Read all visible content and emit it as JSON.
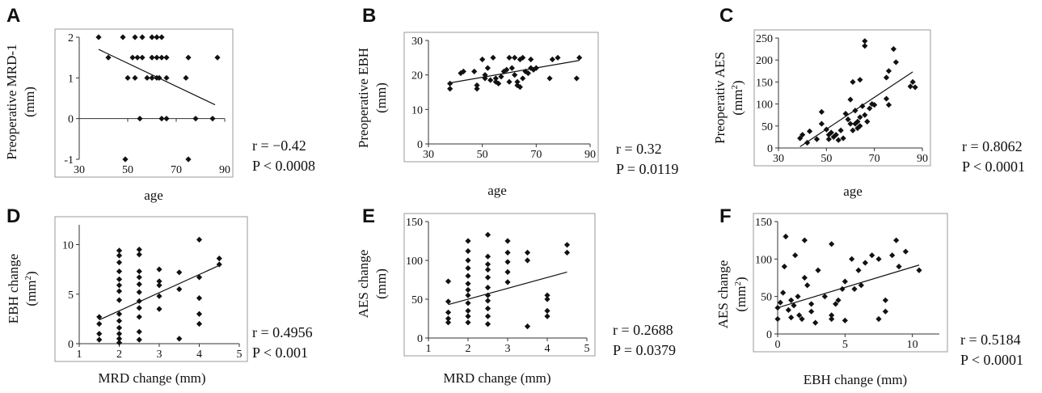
{
  "chart_data": [
    {
      "panel": "A",
      "type": "scatter",
      "xlabel": "age",
      "ylabel": "Preoperative MRD-1",
      "ylabel_unit": "(mm)",
      "xlim": [
        30,
        90
      ],
      "ylim": [
        -1,
        2
      ],
      "xticks": [
        "30",
        "50",
        "70",
        "90"
      ],
      "yticks": [
        "-1",
        "0",
        "1",
        "2"
      ],
      "x_axis_at": 0,
      "annotation": [
        "r = −0.42",
        "P < 0.0008"
      ],
      "trendline": [
        [
          38,
          1.7
        ],
        [
          86,
          0.34
        ]
      ],
      "points": [
        [
          38,
          2
        ],
        [
          48,
          2
        ],
        [
          53,
          2
        ],
        [
          56,
          2
        ],
        [
          60,
          2
        ],
        [
          62,
          2
        ],
        [
          64,
          2
        ],
        [
          42,
          1.5
        ],
        [
          52,
          1.5
        ],
        [
          54,
          1.5
        ],
        [
          56,
          1.5
        ],
        [
          60,
          1.5
        ],
        [
          62,
          1.5
        ],
        [
          64,
          1.5
        ],
        [
          66,
          1.5
        ],
        [
          75,
          1.5
        ],
        [
          87,
          1.5
        ],
        [
          50,
          1
        ],
        [
          53,
          1
        ],
        [
          58,
          1
        ],
        [
          60,
          1
        ],
        [
          62,
          1
        ],
        [
          63,
          1
        ],
        [
          66,
          1
        ],
        [
          74,
          1
        ],
        [
          55,
          0
        ],
        [
          64,
          0
        ],
        [
          66,
          0
        ],
        [
          78,
          0
        ],
        [
          85,
          0
        ],
        [
          49,
          -1
        ],
        [
          75,
          -1
        ]
      ]
    },
    {
      "panel": "B",
      "type": "scatter",
      "xlabel": "age",
      "ylabel": "Preoperative EBH",
      "ylabel_unit": "(mm)",
      "xlim": [
        30,
        90
      ],
      "ylim": [
        0,
        30
      ],
      "xticks": [
        "30",
        "50",
        "70",
        "90"
      ],
      "yticks": [
        "0",
        "10",
        "20",
        "30"
      ],
      "x_axis_at": 0,
      "annotation": [
        "r = 0.32",
        "P = 0.0119"
      ],
      "trendline": [
        [
          38,
          17.7
        ],
        [
          86,
          24.2
        ]
      ],
      "points": [
        [
          38,
          16
        ],
        [
          38,
          17.5
        ],
        [
          42,
          20.5
        ],
        [
          43,
          21
        ],
        [
          47,
          21
        ],
        [
          48,
          16
        ],
        [
          48,
          17
        ],
        [
          50,
          24.5
        ],
        [
          51,
          20
        ],
        [
          51,
          19
        ],
        [
          52,
          22
        ],
        [
          53,
          18.5
        ],
        [
          54,
          25
        ],
        [
          55,
          18
        ],
        [
          55,
          19
        ],
        [
          56,
          17.5
        ],
        [
          57,
          19.5
        ],
        [
          58,
          21
        ],
        [
          59,
          21.5
        ],
        [
          60,
          18
        ],
        [
          60,
          25
        ],
        [
          61,
          22
        ],
        [
          62,
          25
        ],
        [
          62,
          20
        ],
        [
          63,
          18
        ],
        [
          63,
          17
        ],
        [
          64,
          24.5
        ],
        [
          64,
          16.5
        ],
        [
          65,
          19
        ],
        [
          65,
          25
        ],
        [
          66,
          21
        ],
        [
          67,
          20.5
        ],
        [
          68,
          24.5
        ],
        [
          68,
          22
        ],
        [
          69,
          21.5
        ],
        [
          70,
          22
        ],
        [
          75,
          19
        ],
        [
          76,
          24.5
        ],
        [
          78,
          25
        ],
        [
          85,
          19
        ],
        [
          86,
          25
        ]
      ]
    },
    {
      "panel": "C",
      "type": "scatter",
      "xlabel": "age",
      "ylabel": "Preoperativ AES",
      "ylabel_unit": "(mm2)",
      "xlim": [
        30,
        90
      ],
      "ylim": [
        0,
        250
      ],
      "xticks": [
        "30",
        "50",
        "70",
        "90"
      ],
      "yticks": [
        "0",
        "50",
        "100",
        "150",
        "200",
        "250"
      ],
      "x_axis_at": 0,
      "annotation": [
        "r = 0.8062",
        "P < 0.0001"
      ],
      "trendline": [
        [
          39,
          3
        ],
        [
          86,
          173
        ]
      ],
      "points": [
        [
          39,
          22
        ],
        [
          40,
          30
        ],
        [
          42,
          12
        ],
        [
          43,
          38
        ],
        [
          46,
          20
        ],
        [
          48,
          55
        ],
        [
          48,
          82
        ],
        [
          50,
          42
        ],
        [
          51,
          20
        ],
        [
          51,
          30
        ],
        [
          52,
          35
        ],
        [
          53,
          25
        ],
        [
          54,
          30
        ],
        [
          55,
          18
        ],
        [
          56,
          40
        ],
        [
          57,
          22
        ],
        [
          58,
          78
        ],
        [
          59,
          65
        ],
        [
          60,
          55
        ],
        [
          60,
          110
        ],
        [
          61,
          40
        ],
        [
          61,
          150
        ],
        [
          62,
          85
        ],
        [
          62,
          55
        ],
        [
          63,
          45
        ],
        [
          63,
          60
        ],
        [
          64,
          155
        ],
        [
          64,
          70
        ],
        [
          64,
          50
        ],
        [
          65,
          95
        ],
        [
          66,
          75
        ],
        [
          66,
          243
        ],
        [
          66,
          232
        ],
        [
          67,
          60
        ],
        [
          68,
          90
        ],
        [
          69,
          100
        ],
        [
          70,
          98
        ],
        [
          75,
          112
        ],
        [
          75,
          160
        ],
        [
          76,
          175
        ],
        [
          76,
          98
        ],
        [
          78,
          225
        ],
        [
          79,
          195
        ],
        [
          85,
          140
        ],
        [
          86,
          150
        ],
        [
          87,
          138
        ]
      ]
    },
    {
      "panel": "D",
      "type": "scatter",
      "xlabel": "MRD change (mm)",
      "ylabel": "EBH change",
      "ylabel_unit": "(mm2)",
      "xlim": [
        1,
        5
      ],
      "ylim": [
        0,
        12
      ],
      "xticks": [
        "1",
        "2",
        "3",
        "4",
        "5"
      ],
      "yticks": [
        "0",
        "5",
        "10"
      ],
      "x_axis_at": 0,
      "annotation": [
        "r = 0.4956",
        "P < 0.001"
      ],
      "trendline": [
        [
          1.5,
          2.4
        ],
        [
          4.5,
          7.9
        ]
      ],
      "points": [
        [
          1.5,
          0.4
        ],
        [
          1.5,
          1
        ],
        [
          1.5,
          2
        ],
        [
          1.5,
          2.7
        ],
        [
          2,
          0.1
        ],
        [
          2,
          0.5
        ],
        [
          2,
          1
        ],
        [
          2,
          1.6
        ],
        [
          2,
          2.3
        ],
        [
          2,
          3
        ],
        [
          2,
          4.4
        ],
        [
          2,
          5.3
        ],
        [
          2,
          5.9
        ],
        [
          2,
          6.5
        ],
        [
          2,
          7.3
        ],
        [
          2,
          8.2
        ],
        [
          2,
          8.9
        ],
        [
          2,
          9.4
        ],
        [
          2.5,
          0.4
        ],
        [
          2.5,
          1.2
        ],
        [
          2.5,
          2.7
        ],
        [
          2.5,
          3.6
        ],
        [
          2.5,
          4.3
        ],
        [
          2.5,
          5.2
        ],
        [
          2.5,
          6
        ],
        [
          2.5,
          6.7
        ],
        [
          2.5,
          7.3
        ],
        [
          2.5,
          9
        ],
        [
          2.5,
          9.5
        ],
        [
          3,
          3.5
        ],
        [
          3,
          4.8
        ],
        [
          3,
          5.9
        ],
        [
          3,
          6.3
        ],
        [
          3,
          7.5
        ],
        [
          3.5,
          0.5
        ],
        [
          3.5,
          5.5
        ],
        [
          3.5,
          7.2
        ],
        [
          4,
          2
        ],
        [
          4,
          3
        ],
        [
          4,
          4.6
        ],
        [
          4,
          6.7
        ],
        [
          4,
          10.5
        ],
        [
          4.5,
          8
        ],
        [
          4.5,
          8.6
        ]
      ]
    },
    {
      "panel": "E",
      "type": "scatter",
      "xlabel": "MRD change (mm)",
      "ylabel": "AES change",
      "ylabel_unit": "(mm)",
      "xlim": [
        1,
        5
      ],
      "ylim": [
        0,
        150
      ],
      "xticks": [
        "1",
        "2",
        "3",
        "4",
        "5"
      ],
      "yticks": [
        "0",
        "50",
        "100",
        "150"
      ],
      "x_axis_at": 0,
      "annotation": [
        "r = 0.2688",
        "P = 0.0379"
      ],
      "trendline": [
        [
          1.5,
          43
        ],
        [
          4.5,
          85
        ]
      ],
      "points": [
        [
          1.5,
          20
        ],
        [
          1.5,
          25
        ],
        [
          1.5,
          33
        ],
        [
          1.5,
          47
        ],
        [
          1.5,
          73
        ],
        [
          2,
          20
        ],
        [
          2,
          28
        ],
        [
          2,
          35
        ],
        [
          2,
          45
        ],
        [
          2,
          55
        ],
        [
          2,
          62
        ],
        [
          2,
          70
        ],
        [
          2,
          80
        ],
        [
          2,
          90
        ],
        [
          2,
          100
        ],
        [
          2,
          112
        ],
        [
          2,
          125
        ],
        [
          2.5,
          18
        ],
        [
          2.5,
          28
        ],
        [
          2.5,
          38
        ],
        [
          2.5,
          48
        ],
        [
          2.5,
          55
        ],
        [
          2.5,
          65
        ],
        [
          2.5,
          78
        ],
        [
          2.5,
          88
        ],
        [
          2.5,
          95
        ],
        [
          2.5,
          105
        ],
        [
          2.5,
          133
        ],
        [
          3,
          72
        ],
        [
          3,
          85
        ],
        [
          3,
          98
        ],
        [
          3,
          110
        ],
        [
          3,
          125
        ],
        [
          3.5,
          15
        ],
        [
          3.5,
          100
        ],
        [
          3.5,
          110
        ],
        [
          4,
          28
        ],
        [
          4,
          35
        ],
        [
          4,
          50
        ],
        [
          4,
          55
        ],
        [
          4.5,
          110
        ],
        [
          4.5,
          120
        ]
      ]
    },
    {
      "panel": "F",
      "type": "scatter",
      "xlabel": "EBH change (mm)",
      "ylabel": "AES change",
      "ylabel_unit": "(mm2)",
      "xlim": [
        0,
        12
      ],
      "ylim": [
        0,
        150
      ],
      "xticks": [
        "0",
        "5",
        "10"
      ],
      "yticks": [
        "0",
        "50",
        "100",
        "150"
      ],
      "x_axis_at": 0,
      "annotation": [
        "r = 0.5184",
        "P < 0.0001"
      ],
      "trendline": [
        [
          0,
          35
        ],
        [
          10.5,
          92
        ]
      ],
      "points": [
        [
          0,
          20
        ],
        [
          0,
          35
        ],
        [
          0.2,
          42
        ],
        [
          0.4,
          55
        ],
        [
          0.5,
          90
        ],
        [
          0.6,
          130
        ],
        [
          0.8,
          32
        ],
        [
          1,
          22
        ],
        [
          1,
          45
        ],
        [
          1.2,
          38
        ],
        [
          1.3,
          105
        ],
        [
          1.5,
          50
        ],
        [
          1.6,
          25
        ],
        [
          1.8,
          20
        ],
        [
          2,
          75
        ],
        [
          2,
          125
        ],
        [
          2.2,
          65
        ],
        [
          2.5,
          40
        ],
        [
          2.5,
          30
        ],
        [
          2.8,
          15
        ],
        [
          3,
          85
        ],
        [
          3.5,
          50
        ],
        [
          4,
          20
        ],
        [
          4,
          25
        ],
        [
          4,
          120
        ],
        [
          4.3,
          40
        ],
        [
          4.5,
          45
        ],
        [
          4.8,
          60
        ],
        [
          5,
          70
        ],
        [
          5,
          18
        ],
        [
          5.5,
          100
        ],
        [
          5.7,
          60
        ],
        [
          6,
          85
        ],
        [
          6.2,
          65
        ],
        [
          6.5,
          95
        ],
        [
          7,
          105
        ],
        [
          7.5,
          100
        ],
        [
          7.5,
          20
        ],
        [
          8,
          30
        ],
        [
          8,
          45
        ],
        [
          8.5,
          105
        ],
        [
          8.8,
          125
        ],
        [
          9,
          90
        ],
        [
          9.5,
          110
        ],
        [
          10.5,
          85
        ]
      ]
    }
  ]
}
